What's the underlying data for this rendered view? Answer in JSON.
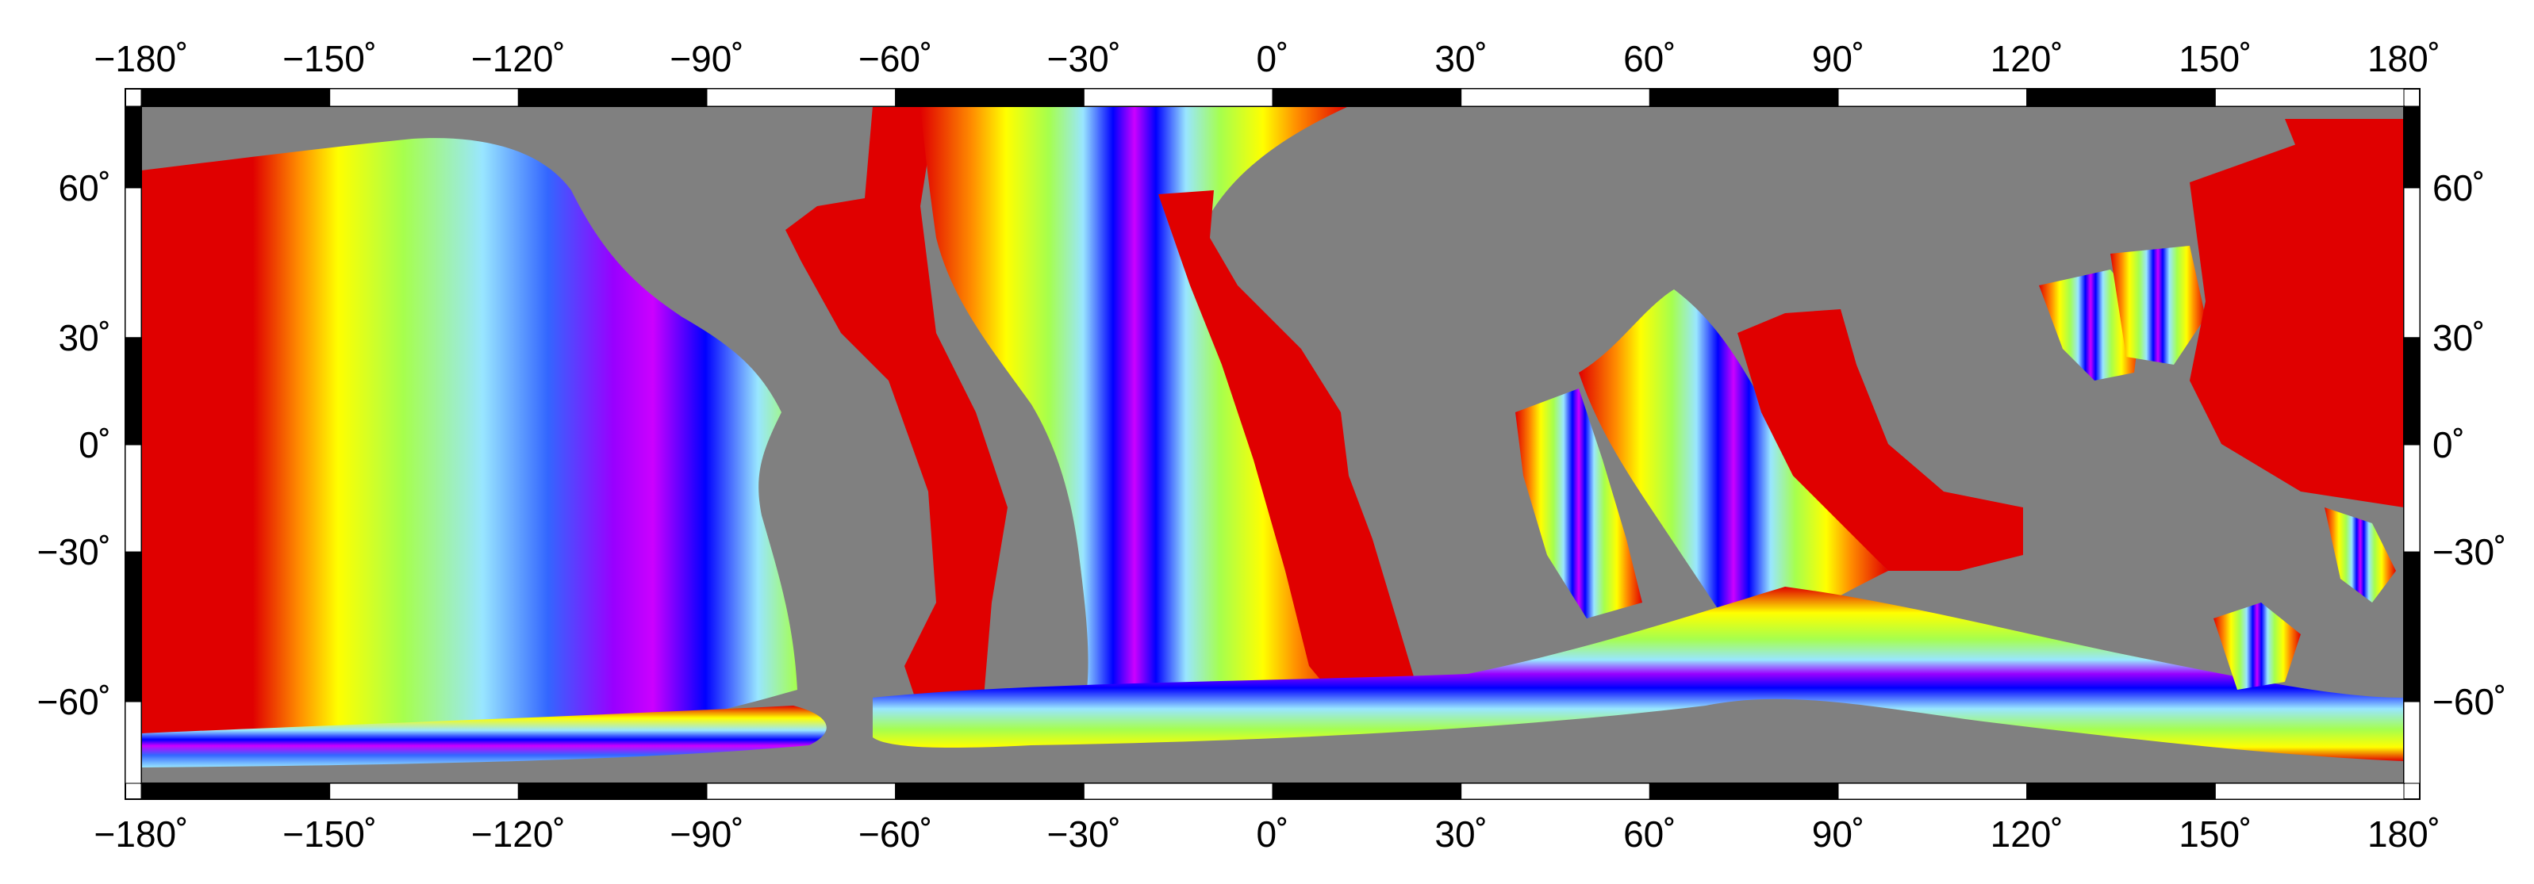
{
  "map": {
    "projection": "Mercator",
    "extent": {
      "lon": [
        -180,
        180
      ],
      "lat": [
        -70,
        70
      ]
    },
    "frame_style": "alternating black/white 30° tick bars",
    "colors": {
      "land": "#808080",
      "old_crust": "#e00000",
      "crust_gradient": [
        "#e00000",
        "#ff8c00",
        "#ffff00",
        "#a6ff4d",
        "#99e6ff",
        "#3366ff",
        "#0000ff",
        "#9900ff",
        "#cc00ff"
      ],
      "frame_dark": "#000000",
      "frame_light": "#ffffff",
      "background": "#ffffff"
    }
  },
  "axes": {
    "top_labels": [
      "−180˚",
      "−150˚",
      "−120˚",
      "−90˚",
      "−60˚",
      "−30˚",
      "0˚",
      "30˚",
      "60˚",
      "90˚",
      "120˚",
      "150˚",
      "180˚"
    ],
    "bottom_labels": [
      "−180˚",
      "−150˚",
      "−120˚",
      "−90˚",
      "−60˚",
      "−30˚",
      "0˚",
      "30˚",
      "60˚",
      "90˚",
      "120˚",
      "150˚",
      "180˚"
    ],
    "left_labels": [
      "60˚",
      "30˚",
      "0˚",
      "−30˚",
      "−60˚"
    ],
    "right_labels": [
      "60˚",
      "30˚",
      "0˚",
      "−30˚",
      "−60˚"
    ]
  }
}
